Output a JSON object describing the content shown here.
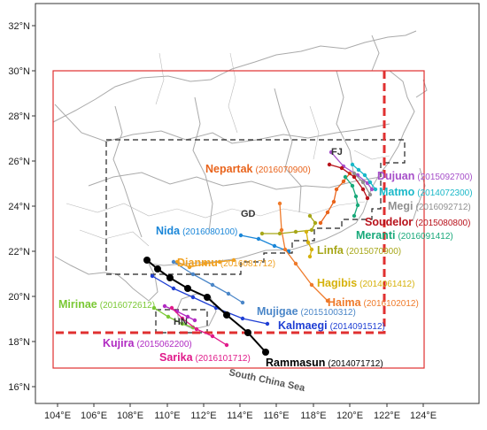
{
  "x_ticks": [
    "104°E",
    "106°E",
    "108°E",
    "110°E",
    "112°E",
    "114°E",
    "116°E",
    "118°E",
    "120°E",
    "122°E",
    "124°E"
  ],
  "y_ticks": [
    "16°N",
    "18°N",
    "20°N",
    "22°N",
    "24°N",
    "26°N",
    "28°N",
    "30°N",
    "32°N"
  ],
  "region_labels": {
    "gd": "GD",
    "fj": "FJ",
    "hn": "HN",
    "sea": "South China Sea"
  },
  "colors": {
    "frame": "#e03030",
    "dashed_region": "#222222",
    "border": "#aaaaaa",
    "border_thin": "#bbbbbb"
  },
  "typhoons": [
    {
      "name": "Nepartak",
      "id": "(2016070900)",
      "color": "#e9641c"
    },
    {
      "name": "Dujuan",
      "id": "(2015092700)",
      "color": "#a64fc9"
    },
    {
      "name": "Matmo",
      "id": "(2014072300)",
      "color": "#1ab8c8"
    },
    {
      "name": "Megi",
      "id": "(2016092712)",
      "color": "#909090"
    },
    {
      "name": "Soudelor",
      "id": "(2015080800)",
      "color": "#b8121b"
    },
    {
      "name": "Meranti",
      "id": "(2016091412)",
      "color": "#18a97a"
    },
    {
      "name": "Nida",
      "id": "(2016080100)",
      "color": "#1a86d8"
    },
    {
      "name": "Linfa",
      "id": "(2015070900)",
      "color": "#a7a718"
    },
    {
      "name": "Dianmu",
      "id": "(2016081712)",
      "color": "#f0a020"
    },
    {
      "name": "Hagibis",
      "id": "(2014061412)",
      "color": "#d6b20c"
    },
    {
      "name": "Mirinae",
      "id": "(2016072612)",
      "color": "#7ac834"
    },
    {
      "name": "Mujigae",
      "id": "(2015100312)",
      "color": "#4a86c8"
    },
    {
      "name": "Haima",
      "id": "(2016102012)",
      "color": "#ef7a2a"
    },
    {
      "name": "Kalmaegi",
      "id": "(2014091512)",
      "color": "#1f3fd4"
    },
    {
      "name": "Kujira",
      "id": "(2015062200)",
      "color": "#b02ac2"
    },
    {
      "name": "Sarika",
      "id": "(2016101712)",
      "color": "#e01a8a"
    },
    {
      "name": "Rammasun",
      "id": "(2014071712)",
      "color": "#000000"
    }
  ]
}
